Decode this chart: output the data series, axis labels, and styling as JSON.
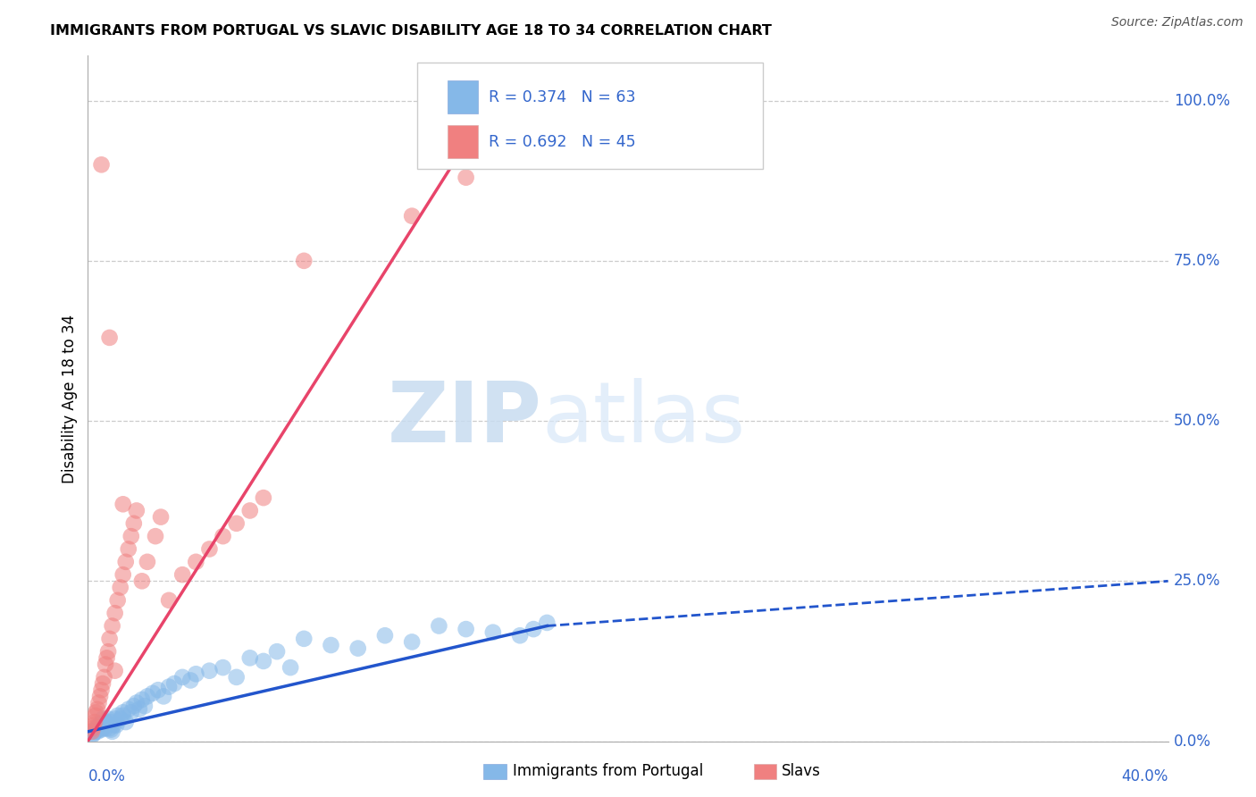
{
  "title": "IMMIGRANTS FROM PORTUGAL VS SLAVIC DISABILITY AGE 18 TO 34 CORRELATION CHART",
  "source": "Source: ZipAtlas.com",
  "ylabel": "Disability Age 18 to 34",
  "yticks": [
    "0.0%",
    "25.0%",
    "50.0%",
    "75.0%",
    "100.0%"
  ],
  "ytick_vals": [
    0,
    25,
    50,
    75,
    100
  ],
  "xtick_left": "0.0%",
  "xtick_right": "40.0%",
  "xmin": 0,
  "xmax": 40,
  "ymin": 0,
  "ymax": 107,
  "blue_color": "#85b8e8",
  "pink_color": "#f08080",
  "blue_line_color": "#2255cc",
  "pink_line_color": "#e8446a",
  "legend_text_color": "#3366cc",
  "watermark_zip": "ZIP",
  "watermark_atlas": "atlas",
  "blue_scatter_x": [
    0.15,
    0.2,
    0.25,
    0.3,
    0.35,
    0.4,
    0.5,
    0.55,
    0.6,
    0.65,
    0.7,
    0.75,
    0.8,
    0.85,
    0.9,
    0.95,
    1.0,
    1.1,
    1.2,
    1.3,
    1.4,
    1.5,
    1.6,
    1.7,
    1.8,
    1.9,
    2.0,
    2.1,
    2.2,
    2.4,
    2.6,
    2.8,
    3.0,
    3.2,
    3.5,
    3.8,
    4.0,
    4.5,
    5.0,
    5.5,
    6.0,
    6.5,
    7.0,
    7.5,
    8.0,
    9.0,
    10.0,
    11.0,
    12.0,
    13.0,
    14.0,
    15.0,
    16.0,
    16.5,
    17.0,
    0.18,
    0.28,
    0.45,
    0.55,
    0.65,
    0.85,
    1.05,
    1.3
  ],
  "blue_scatter_y": [
    1.5,
    1.2,
    1.8,
    2.0,
    1.5,
    2.5,
    1.8,
    2.0,
    2.5,
    3.0,
    2.8,
    3.5,
    2.0,
    3.0,
    1.5,
    2.5,
    3.5,
    4.0,
    3.5,
    4.5,
    3.0,
    5.0,
    4.5,
    5.5,
    6.0,
    5.0,
    6.5,
    5.5,
    7.0,
    7.5,
    8.0,
    7.0,
    8.5,
    9.0,
    10.0,
    9.5,
    10.5,
    11.0,
    11.5,
    10.0,
    13.0,
    12.5,
    14.0,
    11.5,
    16.0,
    15.0,
    14.5,
    16.5,
    15.5,
    18.0,
    17.5,
    17.0,
    16.5,
    17.5,
    18.5,
    1.0,
    1.5,
    2.0,
    3.5,
    2.0,
    1.8,
    2.5,
    4.0
  ],
  "pink_scatter_x": [
    0.15,
    0.18,
    0.2,
    0.25,
    0.28,
    0.3,
    0.35,
    0.4,
    0.45,
    0.5,
    0.55,
    0.6,
    0.65,
    0.7,
    0.75,
    0.8,
    0.9,
    1.0,
    1.1,
    1.2,
    1.3,
    1.4,
    1.5,
    1.6,
    1.7,
    1.8,
    2.0,
    2.2,
    2.5,
    2.7,
    3.0,
    3.5,
    4.0,
    4.5,
    5.0,
    5.5,
    6.0,
    6.5,
    1.0,
    1.3,
    8.0,
    12.0,
    14.0,
    0.5,
    0.8
  ],
  "pink_scatter_y": [
    1.5,
    2.0,
    2.5,
    3.0,
    4.0,
    4.5,
    5.0,
    6.0,
    7.0,
    8.0,
    9.0,
    10.0,
    12.0,
    13.0,
    14.0,
    16.0,
    18.0,
    20.0,
    22.0,
    24.0,
    26.0,
    28.0,
    30.0,
    32.0,
    34.0,
    36.0,
    25.0,
    28.0,
    32.0,
    35.0,
    22.0,
    26.0,
    28.0,
    30.0,
    32.0,
    34.0,
    36.0,
    38.0,
    11.0,
    37.0,
    75.0,
    82.0,
    88.0,
    90.0,
    63.0
  ],
  "blue_line_x0": 0,
  "blue_line_y0": 1.5,
  "blue_line_x1": 17,
  "blue_line_y1": 18,
  "blue_dash_x0": 17,
  "blue_dash_y0": 18,
  "blue_dash_x1": 40,
  "blue_dash_y1": 25,
  "pink_line_x0": 0,
  "pink_line_y0": 0,
  "pink_line_x1": 15,
  "pink_line_y1": 100
}
